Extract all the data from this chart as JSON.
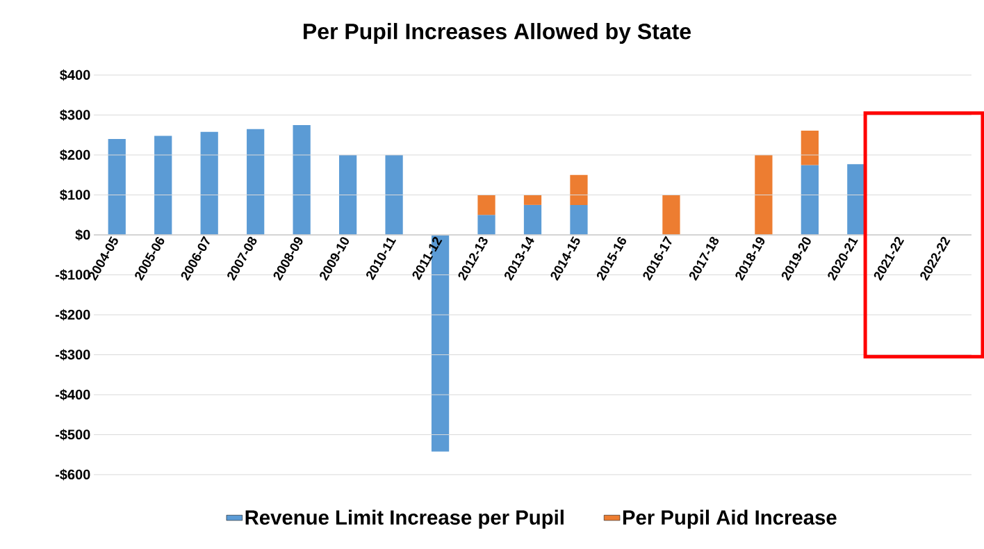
{
  "chart_data": {
    "type": "bar",
    "title": "Per Pupil Increases Allowed by State",
    "categories": [
      "2004-05",
      "2005-06",
      "2006-07",
      "2007-08",
      "2008-09",
      "2009-10",
      "2010-11",
      "2011-12",
      "2012-13",
      "2013-14",
      "2014-15",
      "2015-16",
      "2016-17",
      "2017-18",
      "2018-19",
      "2019-20",
      "2020-21",
      "2021-22",
      "2022-22"
    ],
    "series": [
      {
        "name": "Revenue Limit Increase per Pupil",
        "color": "#5b9bd5",
        "values": [
          240,
          248,
          258,
          265,
          275,
          200,
          200,
          -542,
          50,
          75,
          75,
          0,
          0,
          0,
          0,
          175,
          177,
          null,
          null
        ]
      },
      {
        "name": "Per Pupil Aid Increase",
        "color": "#ed7d31",
        "values": [
          null,
          null,
          null,
          null,
          null,
          null,
          null,
          null,
          50,
          25,
          75,
          0,
          100,
          0,
          200,
          86,
          null,
          null,
          null
        ]
      }
    ],
    "stacked": true,
    "ylim": [
      -600,
      400
    ],
    "yticks": [
      {
        "value": -600,
        "label": "-$600"
      },
      {
        "value": -500,
        "label": "-$500"
      },
      {
        "value": -400,
        "label": "-$400"
      },
      {
        "value": -300,
        "label": "-$300"
      },
      {
        "value": -200,
        "label": "-$200"
      },
      {
        "value": -100,
        "label": "-$100"
      },
      {
        "value": 0,
        "label": "$0"
      },
      {
        "value": 100,
        "label": "$100"
      },
      {
        "value": 200,
        "label": "$200"
      },
      {
        "value": 300,
        "label": "$300"
      },
      {
        "value": 400,
        "label": "$400"
      }
    ],
    "grid": "y",
    "legend": "bottom"
  }
}
